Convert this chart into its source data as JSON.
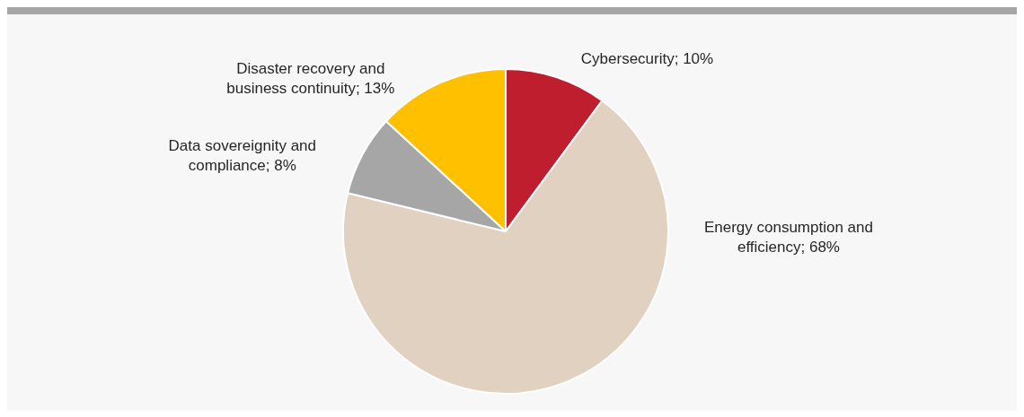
{
  "chart_data": {
    "type": "pie",
    "categories": [
      "Cybersecurity; 10%",
      "Energy consumption and efficiency; 68%",
      "Data sovereignity and compliance; 8%",
      "Disaster recovery and business continuity; 13%"
    ],
    "values": [
      10,
      68,
      8,
      13
    ],
    "colors": [
      "#be1e2d",
      "#e0d1c1",
      "#a6a6a6",
      "#ffc000"
    ]
  }
}
